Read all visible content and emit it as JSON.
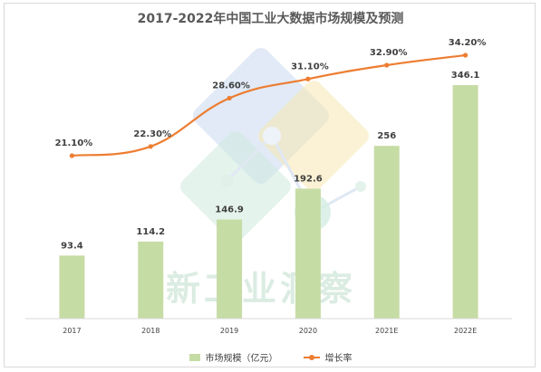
{
  "chart_data": {
    "type": "bar+line",
    "title": "2017-2022年中国工业大数据市场规模及预测",
    "categories": [
      "2017",
      "2018",
      "2019",
      "2020",
      "2021E",
      "2022E"
    ],
    "series": [
      {
        "name": "市场规模（亿元）",
        "kind": "bar",
        "values": [
          93.4,
          114.2,
          146.9,
          192.6,
          256,
          346.1
        ],
        "labels": [
          "93.4",
          "114.2",
          "146.9",
          "192.6",
          "256",
          "346.1"
        ],
        "color": "#c6dca5"
      },
      {
        "name": "增长率",
        "kind": "line",
        "values": [
          21.1,
          22.3,
          28.6,
          31.1,
          32.9,
          34.2
        ],
        "labels": [
          "21.10%",
          "22.30%",
          "28.60%",
          "31.10%",
          "32.90%",
          "34.20%"
        ],
        "color": "#ed7d31"
      }
    ],
    "grid": false,
    "legend_position": "bottom",
    "watermark": "新工业洞察"
  }
}
